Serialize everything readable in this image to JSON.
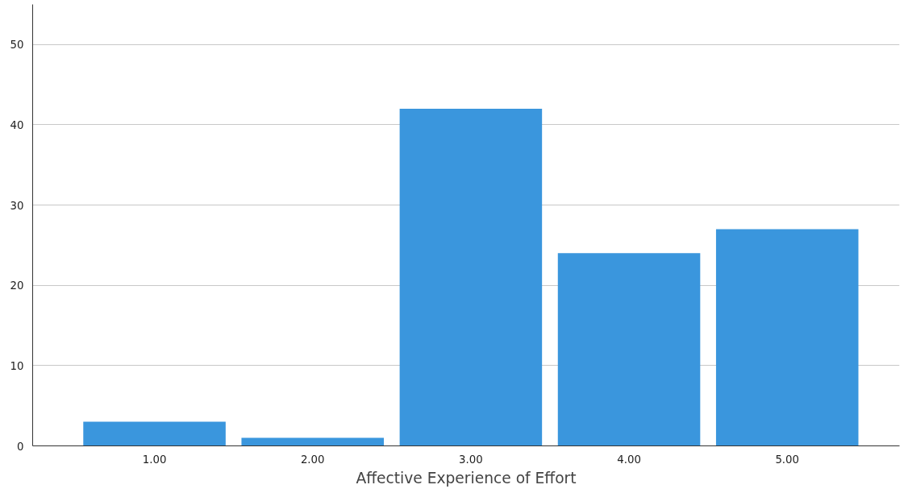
{
  "chart_data": {
    "type": "bar",
    "xlabel": "Affective Experience of Effort",
    "categories": [
      "1.00",
      "2.00",
      "3.00",
      "4.00",
      "5.00"
    ],
    "values": [
      3,
      1,
      42,
      24,
      27
    ],
    "color": "#3a96dd",
    "ylim": [
      0,
      55
    ],
    "yticks": [
      0,
      10,
      20,
      30,
      40,
      50
    ],
    "grid": "y"
  }
}
